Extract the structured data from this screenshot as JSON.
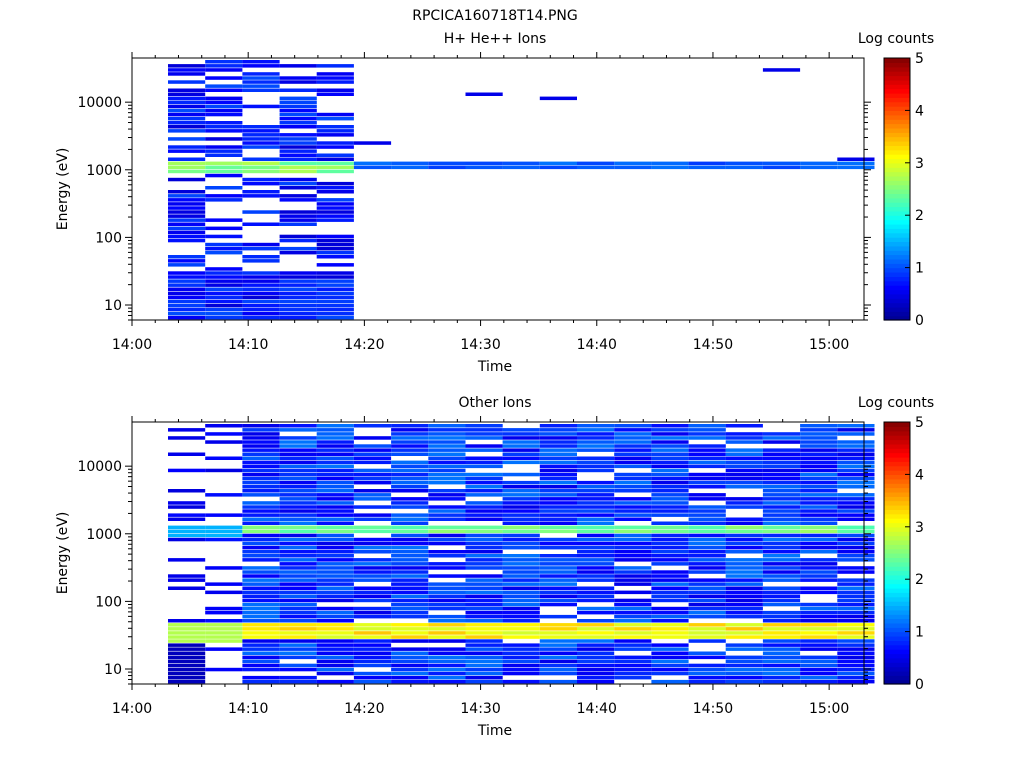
{
  "figure_title": "RPCICA160718T14.PNG",
  "colors": {
    "background": "#ffffff",
    "axis": "#000000",
    "colormap": [
      "#00008f",
      "#0000ff",
      "#0080ff",
      "#00ffff",
      "#80ff80",
      "#ffff00",
      "#ff8000",
      "#ff0000",
      "#800000"
    ]
  },
  "chart_data": [
    {
      "type": "heatmap",
      "title": "H+ He++ Ions",
      "xlabel": "Time",
      "ylabel": "Energy (eV)",
      "x_ticks": [
        "14:00",
        "14:10",
        "14:20",
        "14:30",
        "14:40",
        "14:50",
        "15:00"
      ],
      "x_range_minutes": [
        0,
        63
      ],
      "y_scale": "log",
      "y_ticks": [
        10,
        100,
        1000,
        10000
      ],
      "y_range": [
        6,
        45000
      ],
      "colorbar": {
        "label": "Log counts",
        "range": [
          0,
          5
        ],
        "ticks": [
          0,
          1,
          2,
          3,
          4,
          5
        ]
      },
      "time_bins_minutes": [
        3.1,
        6.3,
        9.5,
        12.7,
        15.9,
        19.1,
        22.3,
        25.5,
        28.7,
        31.9,
        35.1,
        38.3,
        41.5,
        44.7,
        47.9,
        51.1,
        54.3,
        57.5,
        60.7
      ],
      "grid": false,
      "legend": "none"
    },
    {
      "type": "heatmap",
      "title": "Other Ions",
      "xlabel": "Time",
      "ylabel": "Energy (eV)",
      "x_ticks": [
        "14:00",
        "14:10",
        "14:20",
        "14:30",
        "14:40",
        "14:50",
        "15:00"
      ],
      "x_range_minutes": [
        0,
        63
      ],
      "y_scale": "log",
      "y_ticks": [
        10,
        100,
        1000,
        10000
      ],
      "y_range": [
        6,
        45000
      ],
      "colorbar": {
        "label": "Log counts",
        "range": [
          0,
          5
        ],
        "ticks": [
          0,
          1,
          2,
          3,
          4,
          5
        ]
      },
      "time_bins_minutes": [
        3.1,
        6.3,
        9.5,
        12.7,
        15.9,
        19.1,
        22.3,
        25.5,
        28.7,
        31.9,
        35.1,
        38.3,
        41.5,
        44.7,
        47.9,
        51.1,
        54.3,
        57.5,
        60.7
      ],
      "grid": false,
      "legend": "none"
    }
  ]
}
